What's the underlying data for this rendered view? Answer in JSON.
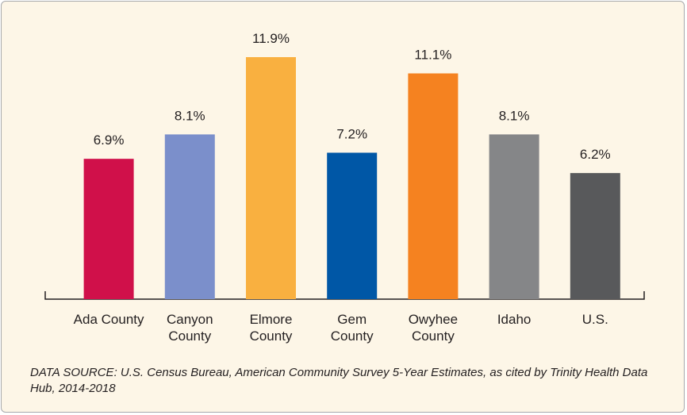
{
  "chart_data": {
    "type": "bar",
    "categories": [
      "Ada County",
      "Canyon County",
      "Elmore County",
      "Gem County",
      "Owyhee County",
      "Idaho",
      "U.S."
    ],
    "values": [
      6.9,
      8.1,
      11.9,
      7.2,
      11.1,
      8.1,
      6.2
    ],
    "value_labels": [
      "6.9%",
      "8.1%",
      "11.9%",
      "7.2%",
      "11.1%",
      "8.1%",
      "6.2%"
    ],
    "colors": [
      "#d0104a",
      "#7b8fcb",
      "#f9b040",
      "#0057a6",
      "#f58220",
      "#858688",
      "#58595b"
    ],
    "source": "DATA SOURCE: U.S. Census Bureau, American Community Survey 5-Year Estimates, as cited by Trinity Health Data Hub, 2014-2018"
  }
}
